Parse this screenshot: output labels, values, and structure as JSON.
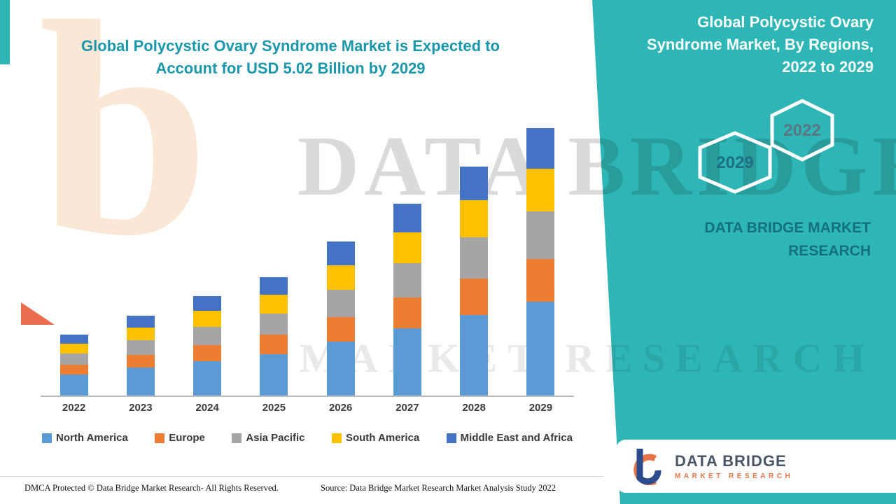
{
  "header": {
    "title_line1": "Global Polycystic Ovary Syndrome Market is Expected to",
    "title_line2": "Account for USD 5.02 Billion by 2029"
  },
  "chart_data": {
    "type": "bar",
    "stacked": true,
    "title": "Global Polycystic Ovary Syndrome Market, By Regions, 2022 to 2029",
    "unit": "USD Billion",
    "categories": [
      "2022",
      "2023",
      "2024",
      "2025",
      "2026",
      "2027",
      "2028",
      "2029"
    ],
    "series": [
      {
        "name": "North America",
        "color": "#5B9BD5",
        "values": [
          0.4,
          0.53,
          0.65,
          0.78,
          1.01,
          1.26,
          1.51,
          1.76
        ]
      },
      {
        "name": "Europe",
        "color": "#ED7D31",
        "values": [
          0.18,
          0.24,
          0.3,
          0.36,
          0.46,
          0.58,
          0.69,
          0.8
        ]
      },
      {
        "name": "Asia Pacific",
        "color": "#A5A5A5",
        "values": [
          0.21,
          0.27,
          0.34,
          0.4,
          0.52,
          0.65,
          0.78,
          0.9
        ]
      },
      {
        "name": "South America",
        "color": "#FFC000",
        "values": [
          0.18,
          0.24,
          0.3,
          0.36,
          0.46,
          0.58,
          0.69,
          0.8
        ]
      },
      {
        "name": "Middle East and Africa",
        "color": "#4472C4",
        "values": [
          0.17,
          0.22,
          0.28,
          0.32,
          0.44,
          0.53,
          0.64,
          0.76
        ]
      }
    ],
    "totals": [
      1.14,
      1.5,
      1.87,
      2.22,
      2.89,
      3.6,
      4.31,
      5.02
    ],
    "ylim": [
      0,
      5.5
    ],
    "y_axis_visible": false,
    "grid": false,
    "legend_position": "bottom"
  },
  "side_panel": {
    "title": "Global Polycystic Ovary Syndrome Market, By Regions, 2022 to 2029",
    "hexagons": [
      "2029",
      "2022"
    ],
    "brand": "DATA BRIDGE MARKET RESEARCH"
  },
  "watermark": {
    "line1": "DATA BRIDGE",
    "line2": "MARKET RESEARCH",
    "logo_letter": "b"
  },
  "footer": {
    "dmca": "DMCA Protected © Data Bridge Market Research- All Rights Reserved.",
    "source": "Source: Data Bridge Market Research Market Analysis Study 2022"
  },
  "logo": {
    "name": "DATA BRIDGE",
    "tagline": "MARKET RESEARCH"
  },
  "colors": {
    "panel_teal": "#2EB6B6",
    "title_teal": "#1B97AC",
    "hex_label_2029": "#1E6F82",
    "hex_label_2022": "#5B7583",
    "brand_dark_teal": "#14707F",
    "logo_orange": "#E8744A",
    "logo_navy": "#2B4B8C"
  }
}
